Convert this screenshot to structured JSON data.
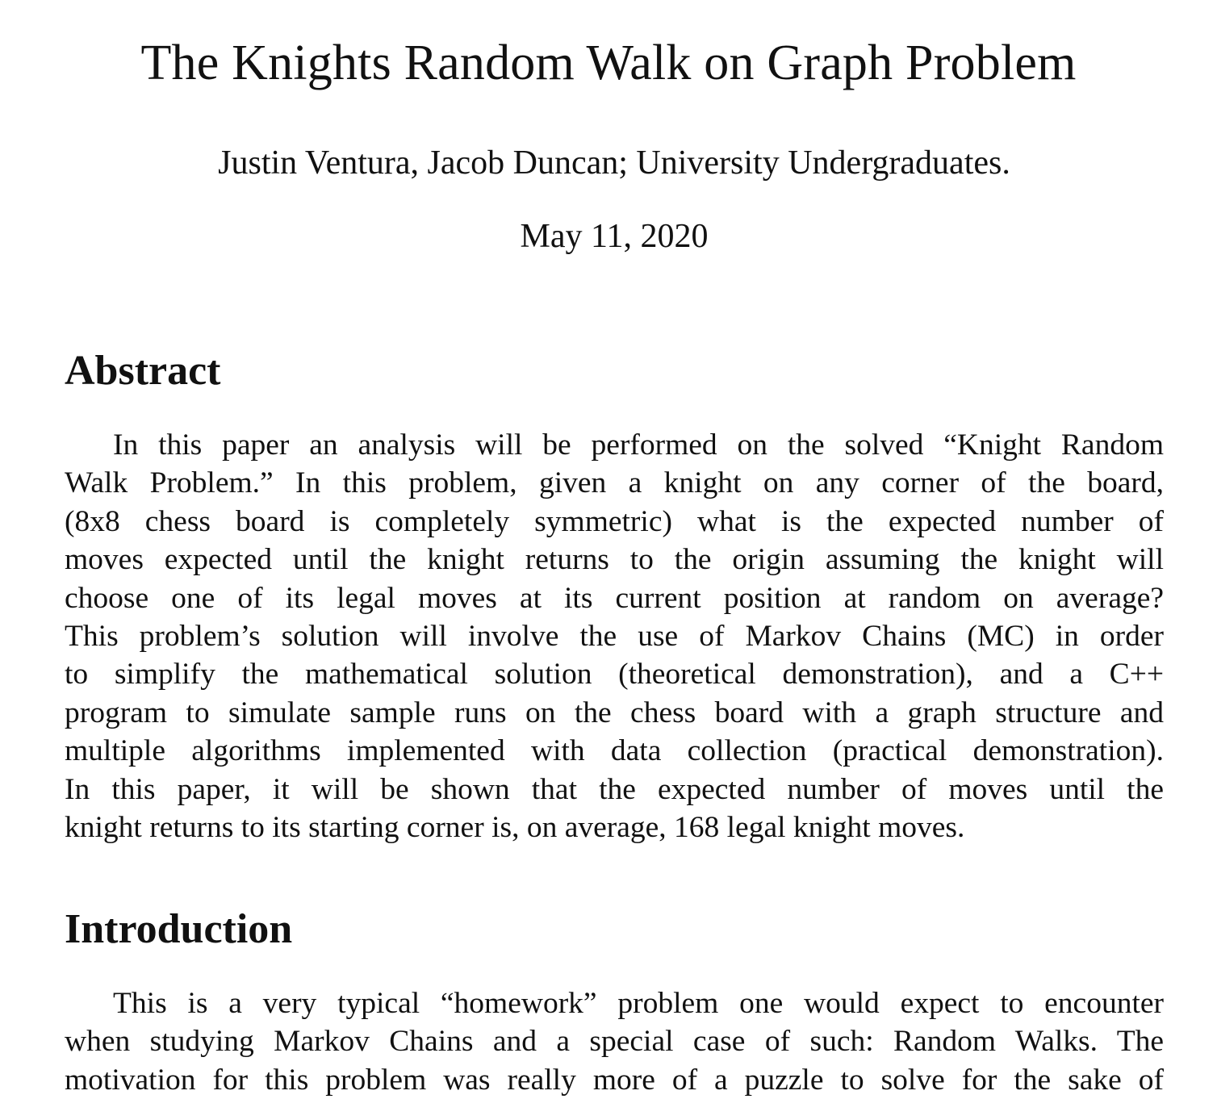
{
  "paper": {
    "title": "The Knights Random Walk on Graph Problem",
    "authors": "Justin Ventura, Jacob Duncan; University Undergraduates.",
    "date": "May 11, 2020"
  },
  "abstract": {
    "heading": "Abstract",
    "lines": [
      "In this paper an analysis will be performed on the solved “Knight Random",
      "Walk Problem.” In this problem, given a knight on any corner of the board,",
      "(8x8 chess board is completely symmetric) what is the expected number of",
      "moves expected until the knight returns to the origin assuming the knight will",
      "choose one of its legal moves at its current position at random on average?",
      "This problem’s solution will involve the use of Markov Chains (MC) in order",
      "to simplify the mathematical solution (theoretical demonstration), and a C++",
      "program to simulate sample runs on the chess board with a graph structure and",
      "multiple algorithms implemented with data collection (practical demonstration).",
      "In this paper, it will be shown that the expected number of moves until the",
      "knight returns to its starting corner is, on average, 168 legal knight moves."
    ]
  },
  "introduction": {
    "heading": "Introduction",
    "lines": [
      "This is a very typical “homework” problem one would expect to encounter",
      "when studying Markov Chains and a special case of such: Random Walks. The",
      "motivation for this problem was really more of a puzzle to solve for the sake of"
    ]
  }
}
